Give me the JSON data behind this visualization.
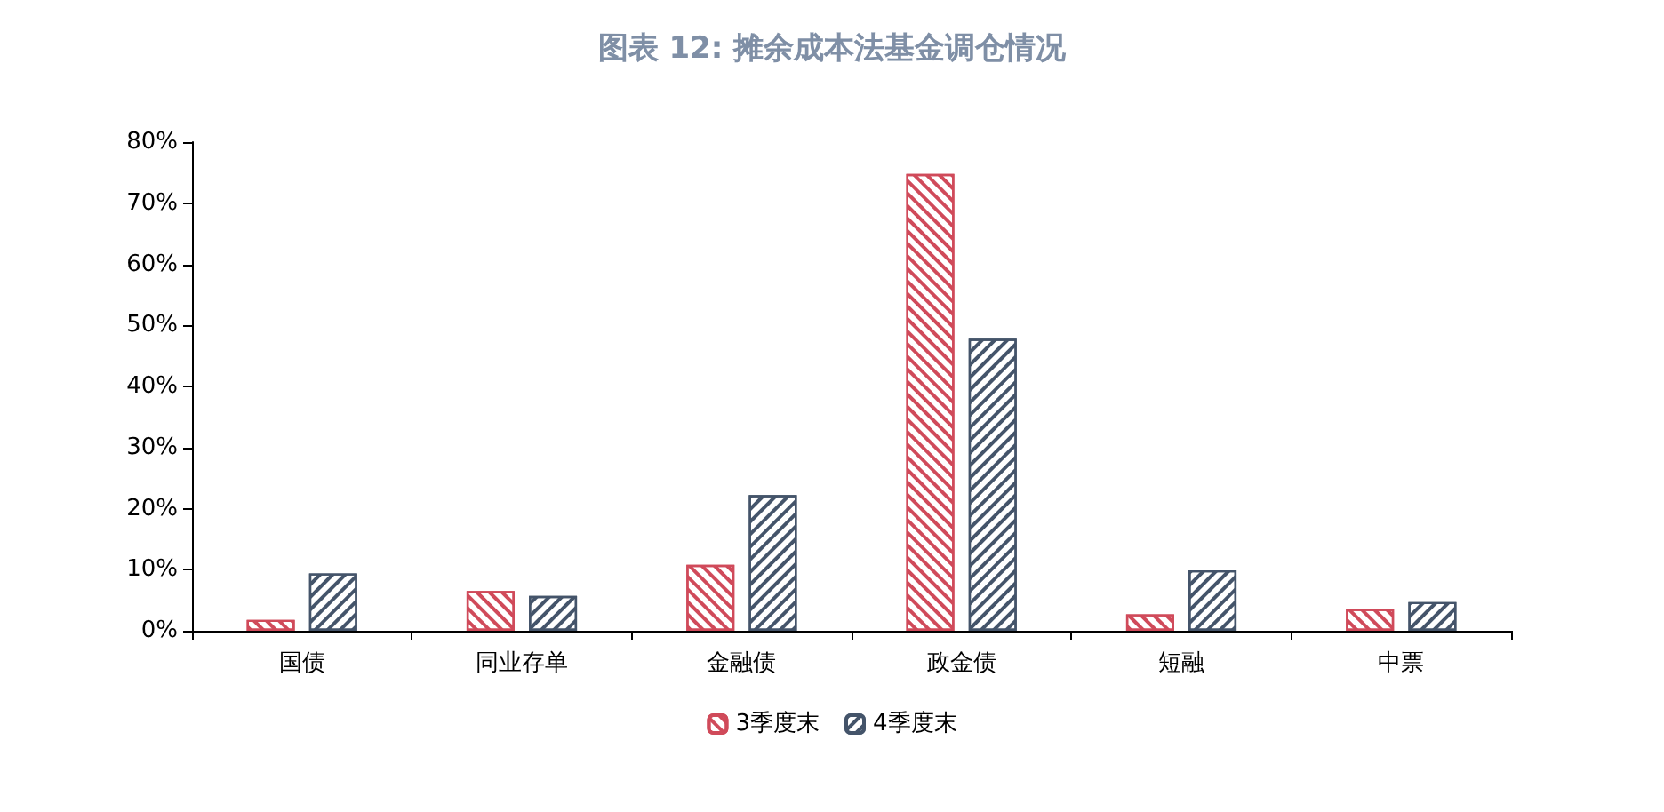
{
  "chart_data": {
    "type": "bar",
    "title": "图表 12: 摊余成本法基金调仓情况",
    "categories": [
      "国债",
      "同业存单",
      "金融债",
      "政金债",
      "短融",
      "中票"
    ],
    "series": [
      {
        "name": "3季度末",
        "color": "#d04a5a",
        "values": [
          1.8,
          6.5,
          10.8,
          74.8,
          2.7,
          3.6
        ]
      },
      {
        "name": "4季度末",
        "color": "#44546a",
        "values": [
          9.4,
          5.7,
          22.2,
          47.8,
          9.9,
          4.7
        ]
      }
    ],
    "ylim": [
      0,
      80
    ],
    "yticks": [
      {
        "value": 0,
        "label": "0%"
      },
      {
        "value": 10,
        "label": "10%"
      },
      {
        "value": 20,
        "label": "20%"
      },
      {
        "value": 30,
        "label": "30%"
      },
      {
        "value": 40,
        "label": "40%"
      },
      {
        "value": 50,
        "label": "50%"
      },
      {
        "value": 60,
        "label": "60%"
      },
      {
        "value": 70,
        "label": "70%"
      },
      {
        "value": 80,
        "label": "80%"
      }
    ],
    "grid": false,
    "legend": "bottom"
  }
}
